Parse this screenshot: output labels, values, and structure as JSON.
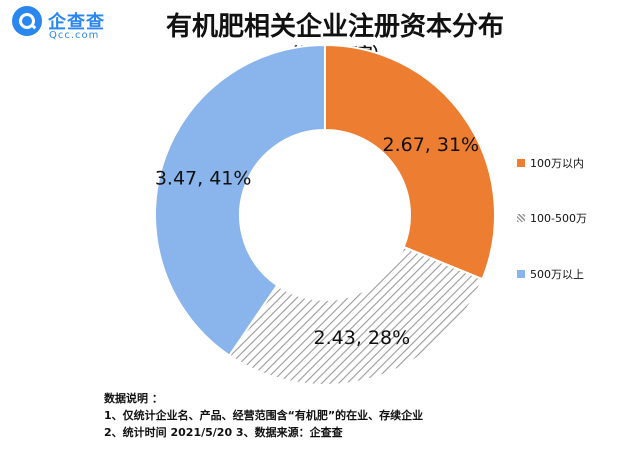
{
  "logo": {
    "cn": "企查查",
    "en": "Qcc.com",
    "icon": "magnifier-logo-icon"
  },
  "chart_data": {
    "type": "pie",
    "donut": true,
    "title": "有机肥相关企业注册资本分布",
    "subtitle": "（单位：万家）",
    "series": [
      {
        "name": "100万以内",
        "value": 2.67,
        "percent": 31,
        "label": "2.67, 31%",
        "color": "#ED7D31",
        "pattern": "solid"
      },
      {
        "name": "100-500万",
        "value": 2.43,
        "percent": 28,
        "label": "2.43, 28%",
        "color": "#A5A5A5",
        "pattern": "hatched"
      },
      {
        "name": "500万以上",
        "value": 3.47,
        "percent": 41,
        "label": "3.47, 41%",
        "color": "#8AB4EC",
        "pattern": "solid"
      }
    ],
    "legend_position": "right"
  },
  "notes": {
    "heading": "数据说明 ：",
    "line1": "1、仅统计企业名、产品、经营范围含“有机肥”的在业、存续企业",
    "line2": "2、统计时间  2021/5/20     3、数据来源：企查查"
  }
}
